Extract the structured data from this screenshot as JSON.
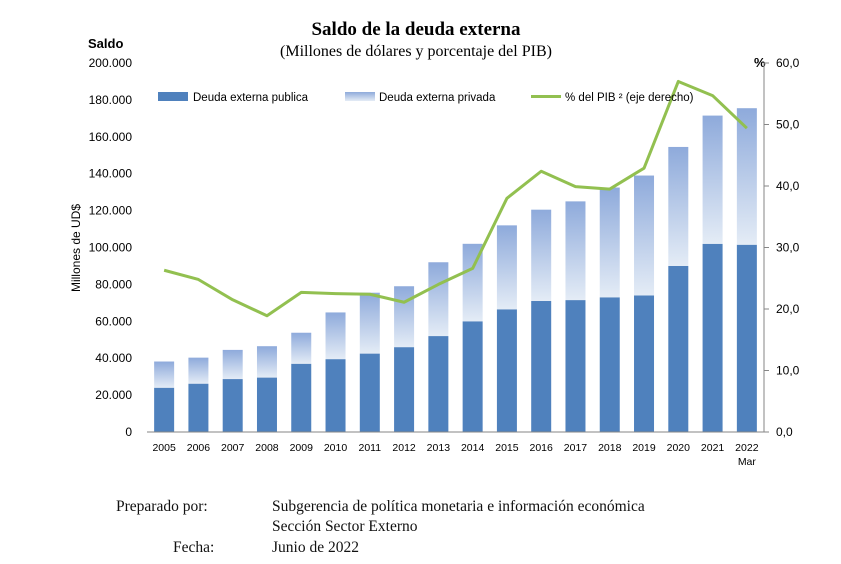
{
  "chart_data": {
    "type": "bar",
    "title": "Saldo de la deuda externa",
    "subtitle": "(Millones  de dólares y porcentaje del PIB)",
    "y_left_header": "Saldo",
    "ylabel": "Millones de UD$",
    "y_right_header": "%",
    "categories": [
      "2005",
      "2006",
      "2007",
      "2008",
      "2009",
      "2010",
      "2011",
      "2012",
      "2013",
      "2014",
      "2015",
      "2016",
      "2017",
      "2018",
      "2019",
      "2020",
      "2021",
      "2022"
    ],
    "last_category_sub": "Mar",
    "ylim": [
      0,
      200000
    ],
    "y_ticks": [
      "0",
      "20.000",
      "40.000",
      "60.000",
      "80.000",
      "100.000",
      "120.000",
      "140.000",
      "160.000",
      "180.000",
      "200.000"
    ],
    "y2lim": [
      0,
      60
    ],
    "y2_ticks": [
      "0,0",
      "10,0",
      "20,0",
      "30,0",
      "40,0",
      "50,0",
      "60,0"
    ],
    "stacked": true,
    "grid": false,
    "legend_position": "top",
    "series": [
      {
        "name": "Deuda externa publica",
        "kind": "bar",
        "axis": "left",
        "color": "#4F81BD",
        "values": [
          24000,
          26200,
          28700,
          29500,
          37000,
          39500,
          42500,
          46000,
          52000,
          60000,
          66500,
          71000,
          71500,
          73000,
          74000,
          90000,
          102000,
          101500
        ]
      },
      {
        "name": "Deuda externa privada",
        "kind": "bar",
        "axis": "left",
        "color": "#B8CCE4",
        "values": [
          14200,
          14100,
          15800,
          17000,
          16800,
          25300,
          33000,
          33000,
          40000,
          42000,
          45500,
          49500,
          53500,
          59500,
          65000,
          64500,
          69500,
          74000
        ]
      },
      {
        "name": "% del PIB ² (eje derecho)",
        "kind": "line",
        "axis": "right",
        "color": "#92C050",
        "values": [
          26.3,
          24.8,
          21.5,
          18.9,
          22.7,
          22.5,
          22.4,
          21.1,
          24.0,
          26.6,
          38.0,
          42.4,
          39.9,
          39.5,
          42.9,
          57.0,
          54.7,
          49.4
        ]
      }
    ]
  },
  "footer": {
    "prepared_label": "Preparado por:",
    "prepared_line1": "Subgerencia de política monetaria e información económica",
    "prepared_line2": "Sección Sector Externo",
    "date_label": "Fecha:",
    "date_value": "Junio de 2022"
  }
}
